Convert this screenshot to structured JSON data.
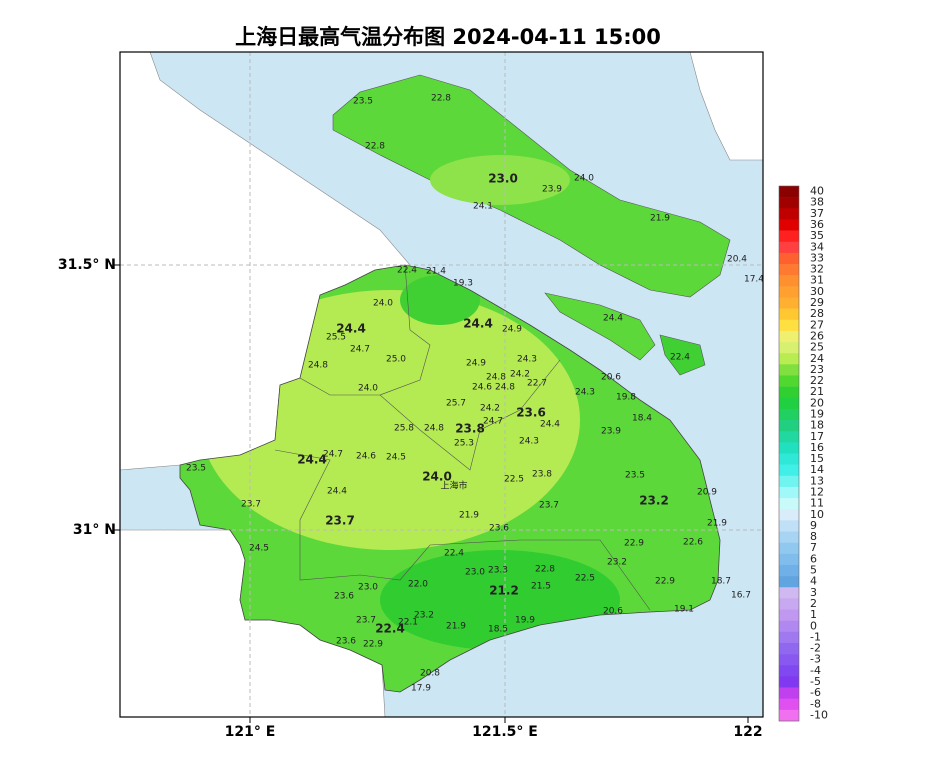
{
  "title": "上海日最高气温分布图 2024-04-11 15:00",
  "axes": {
    "x_ticks": [
      "121° E",
      "121.5° E",
      "122"
    ],
    "y_ticks": [
      "31.5° N",
      "31° N"
    ]
  },
  "map": {
    "labels": [
      "23.5",
      "22.8",
      "22.8",
      "23.0",
      "23.9",
      "24.0",
      "24.1",
      "21.9",
      "20.4",
      "17.4",
      "24.4",
      "22.4",
      "22.4",
      "21.4",
      "19.3",
      "24.0",
      "24.4",
      "25.5",
      "24.4",
      "24.9",
      "24.7",
      "25.0",
      "24.8",
      "24.9",
      "24.3",
      "24.8",
      "24.2",
      "24.6",
      "24.8",
      "22.7",
      "20.6",
      "24.3",
      "19.8",
      "24.0",
      "25.7",
      "24.2",
      "23.6",
      "18.4",
      "24.7",
      "25.8",
      "24.8",
      "23.8",
      "24.4",
      "23.9",
      "25.3",
      "24.3",
      "24.7",
      "24.6",
      "24.5",
      "24.4",
      "23.5",
      "24.0",
      "上海市",
      "22.5",
      "23.8",
      "23.5",
      "24.4",
      "20.9",
      "23.7",
      "23.7",
      "23.2",
      "21.9",
      "23.7",
      "23.6",
      "21.9",
      "22.9",
      "22.6",
      "24.5",
      "22.4",
      "23.2",
      "23.0",
      "23.3",
      "22.8",
      "22.5",
      "22.9",
      "18.7",
      "23.0",
      "22.0",
      "21.5",
      "21.2",
      "16.7",
      "23.6",
      "20.6",
      "19.1",
      "23.7",
      "22.1",
      "23.2",
      "22.4",
      "21.9",
      "19.9",
      "18.5",
      "23.6",
      "22.9",
      "20.8",
      "17.9"
    ]
  },
  "colorbar": {
    "levels": [
      40,
      38,
      37,
      36,
      35,
      34,
      33,
      32,
      31,
      30,
      29,
      28,
      27,
      26,
      25,
      24,
      23,
      22,
      21,
      20,
      19,
      18,
      17,
      16,
      15,
      14,
      13,
      12,
      11,
      10,
      9,
      8,
      7,
      6,
      5,
      4,
      3,
      2,
      1,
      0,
      -1,
      -2,
      -3,
      -4,
      -5,
      -6,
      -8,
      -10
    ],
    "colors": [
      "#8b0000",
      "#a00000",
      "#c00000",
      "#e00000",
      "#ff2020",
      "#ff4040",
      "#ff6030",
      "#ff7a30",
      "#ff9030",
      "#ffa030",
      "#ffb030",
      "#ffc830",
      "#ffe040",
      "#f0f070",
      "#d8f070",
      "#b8ec50",
      "#80e040",
      "#50d830",
      "#30d030",
      "#20d040",
      "#20d060",
      "#20d080",
      "#20d8a0",
      "#20e0c0",
      "#30e8d8",
      "#40f0e8",
      "#70f4f0",
      "#a0f8f8",
      "#c8fafa",
      "#d8ecfa",
      "#c0e0f8",
      "#a8d4f4",
      "#90c8f0",
      "#80bcec",
      "#70b0e8",
      "#60a4e0",
      "#d0b8f0",
      "#c8a8f0",
      "#c098f0",
      "#b088f0",
      "#a078f0",
      "#9068f0",
      "#8858f0",
      "#8048f0",
      "#8038f0",
      "#c040f0",
      "#e050f0",
      "#f070f0"
    ]
  }
}
